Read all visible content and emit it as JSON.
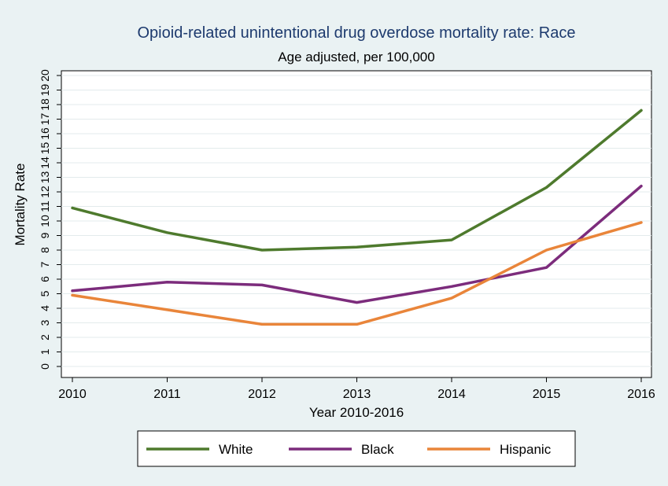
{
  "chart_data": {
    "type": "line",
    "title": "Opioid-related unintentional drug overdose mortality rate: Race",
    "subtitle": "Age adjusted, per 100,000",
    "xlabel": "Year 2010-2016",
    "ylabel": "Mortality Rate",
    "categories": [
      "2010",
      "2011",
      "2012",
      "2013",
      "2014",
      "2015",
      "2016"
    ],
    "yticks": [
      0,
      1,
      2,
      3,
      4,
      5,
      6,
      7,
      8,
      9,
      10,
      11,
      12,
      13,
      14,
      15,
      16,
      17,
      18,
      19,
      20
    ],
    "ylim": [
      0,
      20
    ],
    "grid": true,
    "legend_position": "bottom",
    "series": [
      {
        "name": "White",
        "color": "#4e7a2d",
        "values": [
          10.9,
          9.2,
          8.0,
          8.2,
          8.7,
          12.3,
          17.6
        ]
      },
      {
        "name": "Black",
        "color": "#7c2c7c",
        "values": [
          5.2,
          5.8,
          5.6,
          4.4,
          5.5,
          6.8,
          12.4
        ]
      },
      {
        "name": "Hispanic",
        "color": "#e9853a",
        "values": [
          4.9,
          3.9,
          2.9,
          2.9,
          4.7,
          8.0,
          9.9
        ]
      }
    ]
  }
}
